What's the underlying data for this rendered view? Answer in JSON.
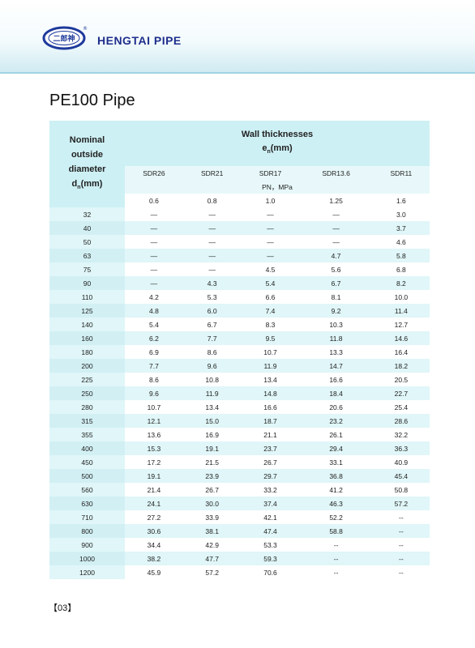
{
  "header": {
    "brand": "HENGTAI PIPE",
    "logo_text": "二郎神",
    "logo_mark": "®"
  },
  "page_title": "PE100 Pipe",
  "table": {
    "nominal_header": [
      "Nominal",
      "outside",
      "diameter"
    ],
    "nominal_symbol": "d",
    "nominal_sub": "n",
    "nominal_unit": "(mm)",
    "wall_header": "Wall thicknesses",
    "wall_symbol": "e",
    "wall_sub": "n",
    "wall_unit": "(mm)",
    "sdr": [
      "SDR26",
      "SDR21",
      "SDR17",
      "SDR13.6",
      "SDR11"
    ],
    "pn_label": "PN，MPa",
    "pn_values": [
      "0.6",
      "0.8",
      "1.0",
      "1.25",
      "1.6"
    ],
    "rows": [
      {
        "dn": "32",
        "values": [
          "—",
          "—",
          "—",
          "—",
          "3.0"
        ]
      },
      {
        "dn": "40",
        "values": [
          "—",
          "—",
          "—",
          "—",
          "3.7"
        ]
      },
      {
        "dn": "50",
        "values": [
          "—",
          "—",
          "—",
          "—",
          "4.6"
        ]
      },
      {
        "dn": "63",
        "values": [
          "—",
          "—",
          "—",
          "4.7",
          "5.8"
        ]
      },
      {
        "dn": "75",
        "values": [
          "—",
          "—",
          "4.5",
          "5.6",
          "6.8"
        ]
      },
      {
        "dn": "90",
        "values": [
          "—",
          "4.3",
          "5.4",
          "6.7",
          "8.2"
        ]
      },
      {
        "dn": "110",
        "values": [
          "4.2",
          "5.3",
          "6.6",
          "8.1",
          "10.0"
        ]
      },
      {
        "dn": "125",
        "values": [
          "4.8",
          "6.0",
          "7.4",
          "9.2",
          "11.4"
        ]
      },
      {
        "dn": "140",
        "values": [
          "5.4",
          "6.7",
          "8.3",
          "10.3",
          "12.7"
        ]
      },
      {
        "dn": "160",
        "values": [
          "6.2",
          "7.7",
          "9.5",
          "11.8",
          "14.6"
        ]
      },
      {
        "dn": "180",
        "values": [
          "6.9",
          "8.6",
          "10.7",
          "13.3",
          "16.4"
        ]
      },
      {
        "dn": "200",
        "values": [
          "7.7",
          "9.6",
          "11.9",
          "14.7",
          "18.2"
        ]
      },
      {
        "dn": "225",
        "values": [
          "8.6",
          "10.8",
          "13.4",
          "16.6",
          "20.5"
        ]
      },
      {
        "dn": "250",
        "values": [
          "9.6",
          "11.9",
          "14.8",
          "18.4",
          "22.7"
        ]
      },
      {
        "dn": "280",
        "values": [
          "10.7",
          "13.4",
          "16.6",
          "20.6",
          "25.4"
        ]
      },
      {
        "dn": "315",
        "values": [
          "12.1",
          "15.0",
          "18.7",
          "23.2",
          "28.6"
        ]
      },
      {
        "dn": "355",
        "values": [
          "13.6",
          "16.9",
          "21.1",
          "26.1",
          "32.2"
        ]
      },
      {
        "dn": "400",
        "values": [
          "15.3",
          "19.1",
          "23.7",
          "29.4",
          "36.3"
        ]
      },
      {
        "dn": "450",
        "values": [
          "17.2",
          "21.5",
          "26.7",
          "33.1",
          "40.9"
        ]
      },
      {
        "dn": "500",
        "values": [
          "19.1",
          "23.9",
          "29.7",
          "36.8",
          "45.4"
        ]
      },
      {
        "dn": "560",
        "values": [
          "21.4",
          "26.7",
          "33.2",
          "41.2",
          "50.8"
        ]
      },
      {
        "dn": "630",
        "values": [
          "24.1",
          "30.0",
          "37.4",
          "46.3",
          "57.2"
        ]
      },
      {
        "dn": "710",
        "values": [
          "27.2",
          "33.9",
          "42.1",
          "52.2",
          "--"
        ]
      },
      {
        "dn": "800",
        "values": [
          "30.6",
          "38.1",
          "47.4",
          "58.8",
          "--"
        ]
      },
      {
        "dn": "900",
        "values": [
          "34.4",
          "42.9",
          "53.3",
          "--",
          "--"
        ]
      },
      {
        "dn": "1000",
        "values": [
          "38.2",
          "47.7",
          "59.3",
          "--",
          "--"
        ]
      },
      {
        "dn": "1200",
        "values": [
          "45.9",
          "57.2",
          "70.6",
          "--",
          "--"
        ]
      }
    ]
  },
  "footer": {
    "page_number": "【03】"
  },
  "colors": {
    "brand": "#1e2f8c",
    "header_cell": "#cdf0f4",
    "row_shade": "#e0f6f8"
  }
}
